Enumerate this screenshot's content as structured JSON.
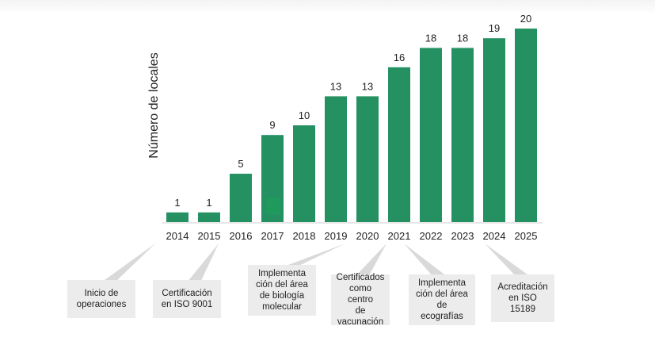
{
  "colors": {
    "bar": "#259163",
    "bar_highlight": "#1f9a5c",
    "callout_bg": "#ececec",
    "callout_line": "#d9d9d9"
  },
  "chart_data": {
    "type": "bar",
    "ylabel": "Número de locales",
    "categories": [
      "2014",
      "2015",
      "2016",
      "2017",
      "2018",
      "2019",
      "2020",
      "2021",
      "2022",
      "2023",
      "2024",
      "2025"
    ],
    "values": [
      1,
      1,
      5,
      9,
      10,
      13,
      13,
      16,
      18,
      18,
      19,
      20
    ],
    "ylim": [
      0,
      20
    ],
    "grid": false,
    "annotations": [
      {
        "year": "2014",
        "text": "Inicio de operaciones"
      },
      {
        "year": "2015",
        "text": "Certificación en ISO 9001"
      },
      {
        "year": "2019",
        "text": "Implementación del área de biología molecular"
      },
      {
        "year": "2021",
        "text": "Certificados como centro de vacunación"
      },
      {
        "year": "2022",
        "text": "Implementación del área de ecografías"
      },
      {
        "year": "2024",
        "text": "Acreditación en ISO 15189"
      }
    ]
  },
  "callouts": [
    {
      "line1": "Inicio de",
      "line2": "operaciones"
    },
    {
      "line1": "Certificación",
      "line2": "en ISO 9001"
    },
    {
      "line1": "Implementa",
      "line2": "ción del área",
      "line3": "de biología",
      "line4": "molecular"
    },
    {
      "line1": "Certificados",
      "line2": "como centro",
      "line3": "de",
      "line4": "vacunación"
    },
    {
      "line1": "Implementa",
      "line2": "ción del área",
      "line3": "de",
      "line4": "ecografías"
    },
    {
      "line1": "Acreditación",
      "line2": "en ISO",
      "line3": "15189"
    }
  ]
}
